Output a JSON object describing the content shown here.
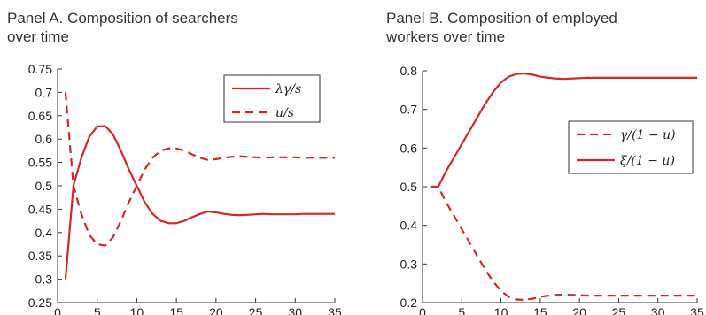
{
  "chart_data": [
    {
      "type": "line",
      "title": "Panel A. Composition of searchers over time",
      "title_lines": [
        "Panel A. Composition of searchers",
        "over time"
      ],
      "xlabel": "",
      "ylabel": "",
      "xlim": [
        0,
        35
      ],
      "ylim": [
        0.25,
        0.75
      ],
      "xticks": [
        0,
        5,
        10,
        15,
        20,
        25,
        30,
        35
      ],
      "yticks": [
        0.25,
        0.3,
        0.35,
        0.4,
        0.45,
        0.5,
        0.55,
        0.6,
        0.65,
        0.7,
        0.75
      ],
      "ytick_labels": [
        "0.25",
        "0.3",
        "0.35",
        "0.4",
        "0.45",
        "0.5",
        "0.55",
        "0.6",
        "0.65",
        "0.7",
        "0.75"
      ],
      "grid": false,
      "legend_position": "top-right",
      "series": [
        {
          "name": "λγ/s",
          "style": "solid",
          "color": "#d62728",
          "x": [
            1,
            2,
            3,
            4,
            5,
            6,
            7,
            8,
            9,
            10,
            11,
            12,
            13,
            14,
            15,
            16,
            17,
            18,
            19,
            20,
            21,
            22,
            23,
            24,
            25,
            26,
            27,
            28,
            29,
            30,
            31,
            32,
            33,
            34,
            35
          ],
          "values": [
            0.3,
            0.5,
            0.56,
            0.605,
            0.627,
            0.628,
            0.61,
            0.575,
            0.535,
            0.5,
            0.465,
            0.44,
            0.425,
            0.42,
            0.42,
            0.425,
            0.433,
            0.44,
            0.445,
            0.443,
            0.44,
            0.438,
            0.437,
            0.438,
            0.439,
            0.44,
            0.439,
            0.439,
            0.439,
            0.439,
            0.44,
            0.44,
            0.44,
            0.44,
            0.44
          ]
        },
        {
          "name": "u/s",
          "style": "dashed",
          "color": "#d62728",
          "x": [
            1,
            2,
            3,
            4,
            5,
            6,
            7,
            8,
            9,
            10,
            11,
            12,
            13,
            14,
            15,
            16,
            17,
            18,
            19,
            20,
            21,
            22,
            23,
            24,
            25,
            26,
            27,
            28,
            29,
            30,
            31,
            32,
            33,
            34,
            35
          ],
          "values": [
            0.7,
            0.5,
            0.44,
            0.395,
            0.375,
            0.372,
            0.39,
            0.425,
            0.465,
            0.5,
            0.535,
            0.56,
            0.575,
            0.58,
            0.58,
            0.575,
            0.567,
            0.56,
            0.555,
            0.557,
            0.56,
            0.562,
            0.563,
            0.562,
            0.561,
            0.56,
            0.561,
            0.561,
            0.561,
            0.561,
            0.56,
            0.56,
            0.56,
            0.56,
            0.56
          ]
        }
      ]
    },
    {
      "type": "line",
      "title": "Panel B. Composition of employed workers over time",
      "title_lines": [
        "Panel B. Composition of employed",
        "workers over time"
      ],
      "xlabel": "",
      "ylabel": "",
      "xlim": [
        0,
        35
      ],
      "ylim": [
        0.2,
        0.8
      ],
      "xticks": [
        0,
        5,
        10,
        15,
        20,
        25,
        30,
        35
      ],
      "yticks": [
        0.2,
        0.3,
        0.4,
        0.5,
        0.6,
        0.7,
        0.8
      ],
      "ytick_labels": [
        "0.2",
        "0.3",
        "0.4",
        "0.5",
        "0.6",
        "0.7",
        "0.8"
      ],
      "grid": false,
      "legend_position": "right",
      "series": [
        {
          "name": "γ/(1 − u)",
          "style": "dashed",
          "color": "#d62728",
          "x": [
            1,
            2,
            3,
            4,
            5,
            6,
            7,
            8,
            9,
            10,
            11,
            12,
            13,
            14,
            15,
            16,
            17,
            18,
            19,
            20,
            21,
            22,
            23,
            24,
            25,
            26,
            27,
            28,
            29,
            30,
            31,
            32,
            33,
            34,
            35
          ],
          "values": [
            0.5,
            0.5,
            0.46,
            0.425,
            0.39,
            0.355,
            0.32,
            0.285,
            0.255,
            0.23,
            0.215,
            0.208,
            0.207,
            0.21,
            0.215,
            0.218,
            0.22,
            0.221,
            0.22,
            0.219,
            0.218,
            0.218,
            0.218,
            0.218,
            0.218,
            0.218,
            0.218,
            0.218,
            0.218,
            0.218,
            0.218,
            0.218,
            0.218,
            0.218,
            0.218
          ]
        },
        {
          "name": "ξ/(1 − u)",
          "style": "solid",
          "color": "#d62728",
          "x": [
            1,
            2,
            3,
            4,
            5,
            6,
            7,
            8,
            9,
            10,
            11,
            12,
            13,
            14,
            15,
            16,
            17,
            18,
            19,
            20,
            21,
            22,
            23,
            24,
            25,
            26,
            27,
            28,
            29,
            30,
            31,
            32,
            33,
            34,
            35
          ],
          "values": [
            0.5,
            0.5,
            0.54,
            0.575,
            0.61,
            0.645,
            0.68,
            0.715,
            0.745,
            0.77,
            0.785,
            0.792,
            0.793,
            0.79,
            0.785,
            0.782,
            0.78,
            0.779,
            0.78,
            0.781,
            0.782,
            0.782,
            0.782,
            0.782,
            0.782,
            0.782,
            0.782,
            0.782,
            0.782,
            0.782,
            0.782,
            0.782,
            0.782,
            0.782,
            0.782
          ]
        }
      ]
    }
  ]
}
